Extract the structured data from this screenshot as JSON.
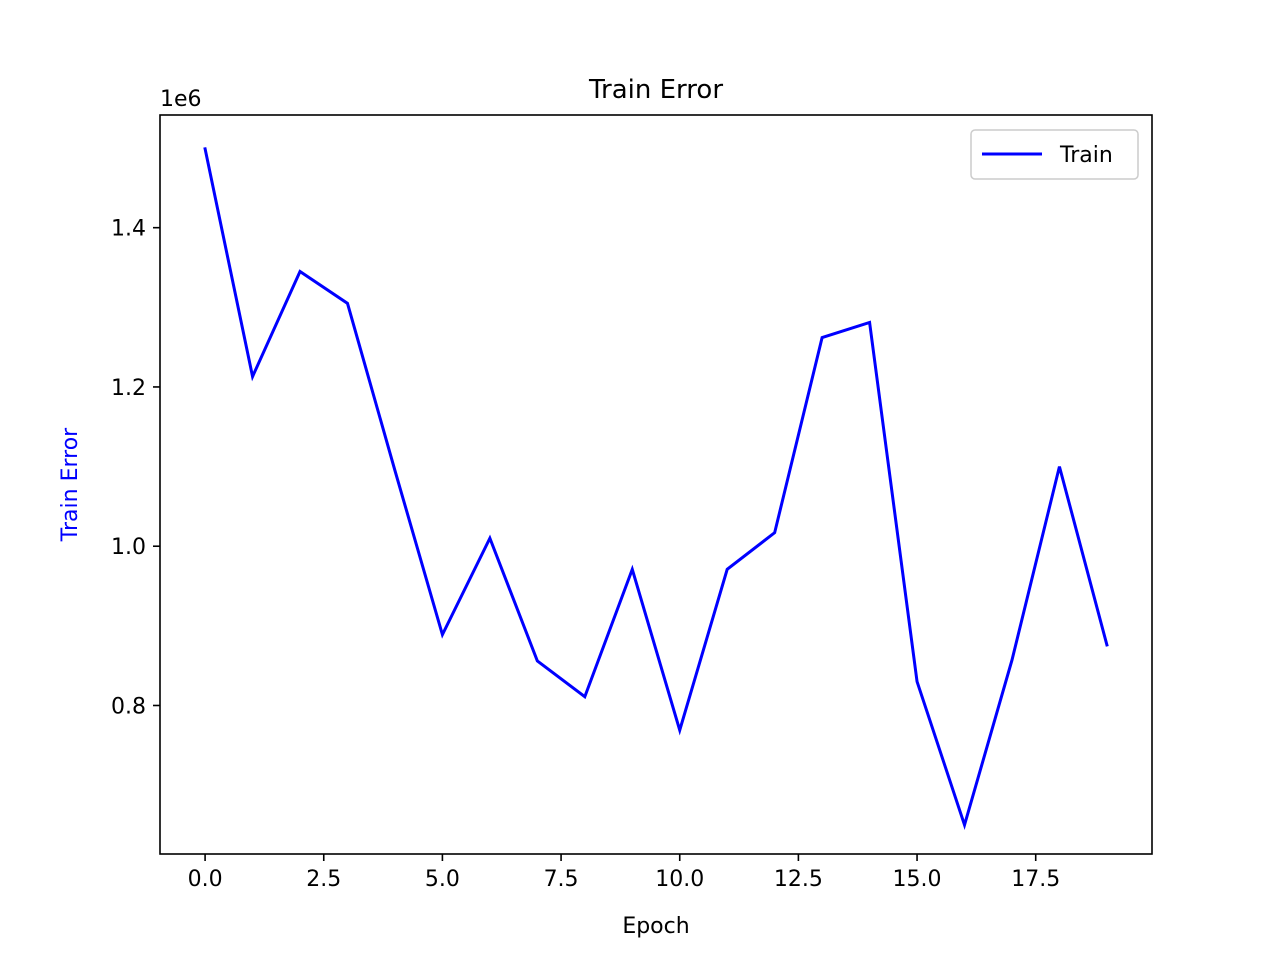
{
  "chart_data": {
    "type": "line",
    "title": "Train Error",
    "xlabel": "Epoch",
    "ylabel": "Train Error",
    "ylabel_color": "#0000ff",
    "offset_text": "1e6",
    "xlim": [
      -0.95,
      19.95
    ],
    "ylim": [
      0.6135,
      1.5415
    ],
    "x_ticks": [
      0.0,
      2.5,
      5.0,
      7.5,
      10.0,
      12.5,
      15.0,
      17.5
    ],
    "x_tick_labels": [
      "0.0",
      "2.5",
      "5.0",
      "7.5",
      "10.0",
      "12.5",
      "15.0",
      "17.5"
    ],
    "y_ticks": [
      0.8,
      1.0,
      1.2,
      1.4
    ],
    "y_tick_labels": [
      "0.8",
      "1.0",
      "1.2",
      "1.4"
    ],
    "grid": false,
    "legend_position": "top-right",
    "x": [
      0,
      1,
      2,
      3,
      4,
      5,
      6,
      7,
      8,
      9,
      10,
      11,
      12,
      13,
      14,
      15,
      16,
      17,
      18,
      19
    ],
    "series": [
      {
        "name": "Train",
        "color": "#0000ff",
        "values": [
          1.499,
          1.213,
          1.345,
          1.305,
          1.095,
          0.889,
          1.01,
          0.856,
          0.811,
          0.971,
          0.769,
          0.971,
          1.017,
          1.262,
          1.281,
          0.83,
          0.65,
          0.857,
          1.1,
          0.876
        ]
      }
    ]
  }
}
